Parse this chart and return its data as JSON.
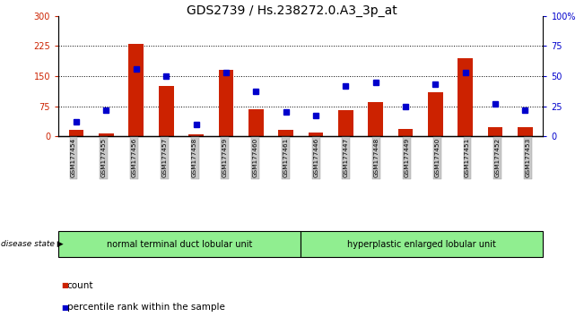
{
  "title": "GDS2739 / Hs.238272.0.A3_3p_at",
  "samples": [
    "GSM177454",
    "GSM177455",
    "GSM177456",
    "GSM177457",
    "GSM177458",
    "GSM177459",
    "GSM177460",
    "GSM177461",
    "GSM177446",
    "GSM177447",
    "GSM177448",
    "GSM177449",
    "GSM177450",
    "GSM177451",
    "GSM177452",
    "GSM177453"
  ],
  "counts": [
    15,
    8,
    230,
    125,
    5,
    165,
    68,
    15,
    10,
    65,
    85,
    18,
    110,
    195,
    22,
    22
  ],
  "percentiles": [
    12,
    22,
    56,
    50,
    10,
    53,
    37,
    20,
    17,
    42,
    45,
    25,
    43,
    53,
    27,
    22
  ],
  "bar_color": "#cc2200",
  "dot_color": "#0000cc",
  "left_ylim": [
    0,
    300
  ],
  "right_ylim": [
    0,
    100
  ],
  "left_yticks": [
    0,
    75,
    150,
    225,
    300
  ],
  "right_yticks": [
    0,
    25,
    50,
    75,
    100
  ],
  "right_yticklabels": [
    "0",
    "25",
    "50",
    "75",
    "100%"
  ],
  "group1_label": "normal terminal duct lobular unit",
  "group2_label": "hyperplastic enlarged lobular unit",
  "group1_count": 8,
  "group2_count": 8,
  "disease_state_label": "disease state",
  "legend_count_label": "count",
  "legend_pct_label": "percentile rank within the sample",
  "xticklabel_bg": "#c8c8c8",
  "group_color": "#90ee90",
  "grid_yticks": [
    75,
    150,
    225
  ],
  "title_fontsize": 10,
  "tick_fontsize": 7,
  "bar_width": 0.5
}
